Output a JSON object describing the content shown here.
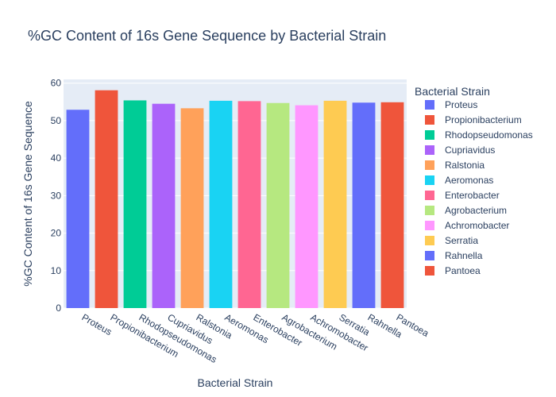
{
  "chart_data": {
    "type": "bar",
    "title": "%GC Content of 16s Gene Sequence by Bacterial Strain",
    "xlabel": "Bacterial Strain",
    "ylabel": "%GC Content of 16s Gene Sequence",
    "ylim": [
      0,
      61
    ],
    "yticks": [
      0,
      10,
      20,
      30,
      40,
      50,
      60
    ],
    "grid": true,
    "legend_title": "Bacterial Strain",
    "legend_position": "right",
    "categories": [
      "Proteus",
      "Propionibacterium",
      "Rhodopseudomonas",
      "Cupriavidus",
      "Ralstonia",
      "Aeromonas",
      "Enterobacter",
      "Agrobacterium",
      "Achromobacter",
      "Serratia",
      "Rahnella",
      "Pantoea"
    ],
    "values": [
      52.9,
      58.1,
      55.4,
      54.5,
      53.3,
      55.3,
      55.2,
      54.7,
      54.1,
      55.3,
      54.8,
      54.9
    ],
    "colors": [
      "#636efa",
      "#EF553B",
      "#00cc96",
      "#ab63fa",
      "#FFA15A",
      "#19d3f3",
      "#FF6692",
      "#B6E880",
      "#FF97FF",
      "#FECB52",
      "#636efa",
      "#EF553B"
    ],
    "plot_background": "#E5ECF6"
  }
}
